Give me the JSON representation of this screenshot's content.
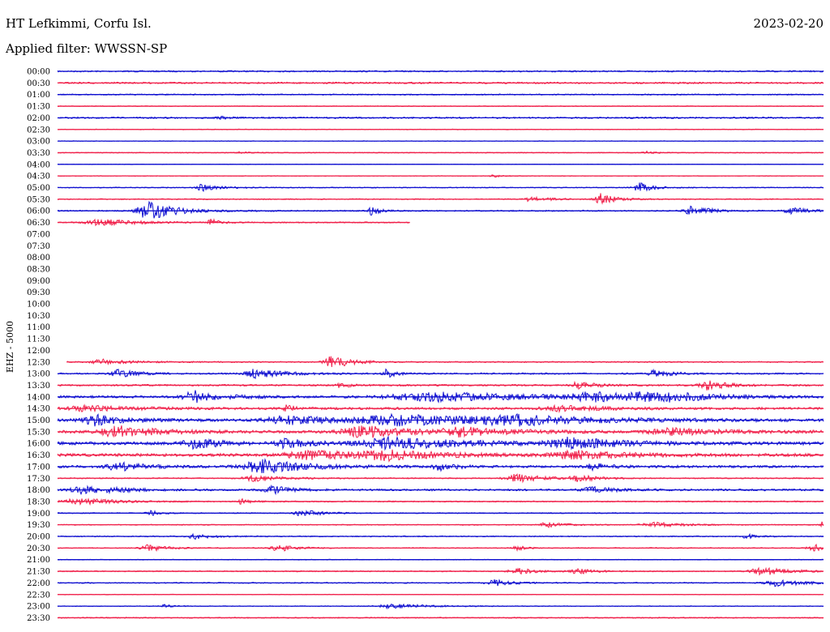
{
  "header": {
    "station": "HT Lefkimmi, Corfu Isl.",
    "date": "2023-02-20",
    "filter": "Applied filter: WWSSN-SP"
  },
  "channel_label": "EHZ - 5000",
  "colors": {
    "even": "#1010d0",
    "odd": "#f0204a"
  },
  "chart_data": {
    "type": "line",
    "title": "",
    "xlabel": "",
    "ylabel": "EHZ - 5000",
    "row_unit_minutes": 30,
    "rows": [
      {
        "time": "00:00",
        "start": 0.0,
        "end": 1.0,
        "noise": 1.2,
        "events": []
      },
      {
        "time": "00:30",
        "start": 0.0,
        "end": 1.0,
        "noise": 1.4,
        "events": []
      },
      {
        "time": "01:00",
        "start": 0.0,
        "end": 1.0,
        "noise": 1.0,
        "events": []
      },
      {
        "time": "01:30",
        "start": 0.0,
        "end": 1.0,
        "noise": 0.6,
        "events": []
      },
      {
        "time": "02:00",
        "start": 0.0,
        "end": 1.0,
        "noise": 1.3,
        "events": [
          {
            "at": 0.21,
            "amp": 2.0,
            "width": 0.01
          }
        ]
      },
      {
        "time": "02:30",
        "start": 0.0,
        "end": 1.0,
        "noise": 0.6,
        "events": []
      },
      {
        "time": "03:00",
        "start": 0.0,
        "end": 1.0,
        "noise": 0.5,
        "events": []
      },
      {
        "time": "03:30",
        "start": 0.0,
        "end": 1.0,
        "noise": 0.7,
        "events": [
          {
            "at": 0.24,
            "amp": 1.5,
            "width": 0.01
          },
          {
            "at": 0.77,
            "amp": 1.5,
            "width": 0.01
          }
        ]
      },
      {
        "time": "04:00",
        "start": 0.0,
        "end": 1.0,
        "noise": 0.5,
        "events": []
      },
      {
        "time": "04:30",
        "start": 0.0,
        "end": 1.0,
        "noise": 0.5,
        "events": [
          {
            "at": 0.57,
            "amp": 1.5,
            "width": 0.01
          }
        ]
      },
      {
        "time": "05:00",
        "start": 0.0,
        "end": 1.0,
        "noise": 0.8,
        "events": [
          {
            "at": 0.19,
            "amp": 4.0,
            "width": 0.02
          },
          {
            "at": 0.76,
            "amp": 6.0,
            "width": 0.015
          }
        ]
      },
      {
        "time": "05:30",
        "start": 0.0,
        "end": 1.0,
        "noise": 0.9,
        "events": [
          {
            "at": 0.62,
            "amp": 3.0,
            "width": 0.02
          },
          {
            "at": 0.71,
            "amp": 7.0,
            "width": 0.015
          }
        ]
      },
      {
        "time": "06:00",
        "start": 0.0,
        "end": 1.0,
        "noise": 1.1,
        "events": [
          {
            "at": 0.12,
            "amp": 11.0,
            "width": 0.03
          },
          {
            "at": 0.41,
            "amp": 5.0,
            "width": 0.01
          },
          {
            "at": 0.83,
            "amp": 6.0,
            "width": 0.02
          },
          {
            "at": 0.96,
            "amp": 4.0,
            "width": 0.02
          }
        ]
      },
      {
        "time": "06:30",
        "start": 0.0,
        "end": 0.46,
        "noise": 1.0,
        "events": [
          {
            "at": 0.06,
            "amp": 4.0,
            "width": 0.04
          },
          {
            "at": 0.2,
            "amp": 4.0,
            "width": 0.01
          }
        ]
      },
      {
        "time": "07:00",
        "start": 0,
        "end": 0,
        "noise": 0,
        "events": []
      },
      {
        "time": "07:30",
        "start": 0,
        "end": 0,
        "noise": 0,
        "events": []
      },
      {
        "time": "08:00",
        "start": 0,
        "end": 0,
        "noise": 0,
        "events": []
      },
      {
        "time": "08:30",
        "start": 0,
        "end": 0,
        "noise": 0,
        "events": []
      },
      {
        "time": "09:00",
        "start": 0,
        "end": 0,
        "noise": 0,
        "events": []
      },
      {
        "time": "09:30",
        "start": 0,
        "end": 0,
        "noise": 0,
        "events": []
      },
      {
        "time": "10:00",
        "start": 0,
        "end": 0,
        "noise": 0,
        "events": []
      },
      {
        "time": "10:30",
        "start": 0,
        "end": 0,
        "noise": 0,
        "events": []
      },
      {
        "time": "11:00",
        "start": 0,
        "end": 0,
        "noise": 0,
        "events": []
      },
      {
        "time": "11:30",
        "start": 0,
        "end": 0,
        "noise": 0,
        "events": []
      },
      {
        "time": "12:00",
        "start": 0,
        "end": 0,
        "noise": 0,
        "events": []
      },
      {
        "time": "12:30",
        "start": 0.012,
        "end": 1.0,
        "noise": 1.0,
        "events": [
          {
            "at": 0.06,
            "amp": 3.0,
            "width": 0.03
          },
          {
            "at": 0.36,
            "amp": 8.0,
            "width": 0.02
          }
        ]
      },
      {
        "time": "13:00",
        "start": 0.0,
        "end": 1.0,
        "noise": 1.3,
        "events": [
          {
            "at": 0.08,
            "amp": 5.0,
            "width": 0.02
          },
          {
            "at": 0.26,
            "amp": 6.0,
            "width": 0.03
          },
          {
            "at": 0.43,
            "amp": 5.0,
            "width": 0.01
          },
          {
            "at": 0.78,
            "amp": 4.0,
            "width": 0.02
          }
        ]
      },
      {
        "time": "13:30",
        "start": 0.0,
        "end": 1.0,
        "noise": 1.4,
        "events": [
          {
            "at": 0.37,
            "amp": 4.0,
            "width": 0.01
          },
          {
            "at": 0.68,
            "amp": 4.0,
            "width": 0.02
          },
          {
            "at": 0.85,
            "amp": 6.0,
            "width": 0.02
          }
        ]
      },
      {
        "time": "14:00",
        "start": 0.0,
        "end": 1.0,
        "noise": 2.0,
        "events": [
          {
            "at": 0.18,
            "amp": 7.0,
            "width": 0.03
          },
          {
            "at": 0.5,
            "amp": 5.0,
            "width": 0.12
          },
          {
            "at": 0.7,
            "amp": 5.0,
            "width": 0.05
          },
          {
            "at": 0.78,
            "amp": 6.0,
            "width": 0.05
          }
        ]
      },
      {
        "time": "14:30",
        "start": 0.0,
        "end": 1.0,
        "noise": 2.0,
        "events": [
          {
            "at": 0.04,
            "amp": 3.0,
            "width": 0.05
          },
          {
            "at": 0.3,
            "amp": 5.0,
            "width": 0.01
          },
          {
            "at": 0.66,
            "amp": 3.0,
            "width": 0.05
          }
        ]
      },
      {
        "time": "15:00",
        "start": 0.0,
        "end": 1.0,
        "noise": 2.5,
        "events": [
          {
            "at": 0.05,
            "amp": 6.0,
            "width": 0.03
          },
          {
            "at": 0.3,
            "amp": 5.0,
            "width": 0.05
          },
          {
            "at": 0.45,
            "amp": 6.0,
            "width": 0.1
          },
          {
            "at": 0.6,
            "amp": 5.0,
            "width": 0.08
          }
        ]
      },
      {
        "time": "15:30",
        "start": 0.0,
        "end": 1.0,
        "noise": 2.5,
        "events": [
          {
            "at": 0.08,
            "amp": 7.0,
            "width": 0.04
          },
          {
            "at": 0.4,
            "amp": 7.0,
            "width": 0.05
          },
          {
            "at": 0.53,
            "amp": 5.0,
            "width": 0.05
          },
          {
            "at": 0.8,
            "amp": 4.0,
            "width": 0.05
          }
        ]
      },
      {
        "time": "16:00",
        "start": 0.0,
        "end": 1.0,
        "noise": 2.5,
        "events": [
          {
            "at": 0.18,
            "amp": 6.0,
            "width": 0.03
          },
          {
            "at": 0.3,
            "amp": 5.0,
            "width": 0.03
          },
          {
            "at": 0.44,
            "amp": 7.0,
            "width": 0.08
          },
          {
            "at": 0.67,
            "amp": 6.0,
            "width": 0.06
          }
        ]
      },
      {
        "time": "16:30",
        "start": 0.0,
        "end": 1.0,
        "noise": 2.5,
        "events": [
          {
            "at": 0.33,
            "amp": 5.0,
            "width": 0.06
          },
          {
            "at": 0.43,
            "amp": 5.0,
            "width": 0.06
          },
          {
            "at": 0.68,
            "amp": 5.0,
            "width": 0.06
          }
        ]
      },
      {
        "time": "17:00",
        "start": 0.0,
        "end": 1.0,
        "noise": 2.0,
        "events": [
          {
            "at": 0.08,
            "amp": 5.0,
            "width": 0.03
          },
          {
            "at": 0.27,
            "amp": 8.0,
            "width": 0.05
          },
          {
            "at": 0.5,
            "amp": 4.0,
            "width": 0.02
          },
          {
            "at": 0.7,
            "amp": 4.0,
            "width": 0.02
          }
        ]
      },
      {
        "time": "17:30",
        "start": 0.0,
        "end": 1.0,
        "noise": 1.0,
        "events": [
          {
            "at": 0.26,
            "amp": 4.0,
            "width": 0.03
          },
          {
            "at": 0.6,
            "amp": 5.0,
            "width": 0.03
          },
          {
            "at": 0.68,
            "amp": 4.0,
            "width": 0.02
          }
        ]
      },
      {
        "time": "18:00",
        "start": 0.0,
        "end": 1.0,
        "noise": 1.6,
        "events": [
          {
            "at": 0.04,
            "amp": 5.0,
            "width": 0.04
          },
          {
            "at": 0.28,
            "amp": 5.0,
            "width": 0.02
          },
          {
            "at": 0.7,
            "amp": 3.0,
            "width": 0.03
          }
        ]
      },
      {
        "time": "18:30",
        "start": 0.0,
        "end": 1.0,
        "noise": 1.0,
        "events": [
          {
            "at": 0.03,
            "amp": 4.0,
            "width": 0.04
          },
          {
            "at": 0.24,
            "amp": 3.0,
            "width": 0.01
          }
        ]
      },
      {
        "time": "19:00",
        "start": 0.0,
        "end": 1.0,
        "noise": 0.9,
        "events": [
          {
            "at": 0.12,
            "amp": 4.0,
            "width": 0.01
          },
          {
            "at": 0.32,
            "amp": 4.0,
            "width": 0.02
          }
        ]
      },
      {
        "time": "19:30",
        "start": 0.0,
        "end": 1.0,
        "noise": 0.8,
        "events": [
          {
            "at": 0.64,
            "amp": 3.0,
            "width": 0.02
          },
          {
            "at": 0.78,
            "amp": 3.0,
            "width": 0.03
          },
          {
            "at": 0.998,
            "amp": 5.0,
            "width": 0.005
          }
        ]
      },
      {
        "time": "20:00",
        "start": 0.0,
        "end": 1.0,
        "noise": 0.9,
        "events": [
          {
            "at": 0.18,
            "amp": 3.0,
            "width": 0.02
          },
          {
            "at": 0.9,
            "amp": 3.0,
            "width": 0.01
          }
        ]
      },
      {
        "time": "20:30",
        "start": 0.0,
        "end": 1.0,
        "noise": 0.8,
        "events": [
          {
            "at": 0.12,
            "amp": 4.0,
            "width": 0.02
          },
          {
            "at": 0.29,
            "amp": 4.0,
            "width": 0.02
          },
          {
            "at": 0.6,
            "amp": 3.0,
            "width": 0.01
          },
          {
            "at": 0.99,
            "amp": 4.0,
            "width": 0.02
          }
        ]
      },
      {
        "time": "21:00",
        "start": 0.0,
        "end": 1.0,
        "noise": 0.6,
        "events": []
      },
      {
        "time": "21:30",
        "start": 0.0,
        "end": 1.0,
        "noise": 0.9,
        "events": [
          {
            "at": 0.6,
            "amp": 4.0,
            "width": 0.02
          },
          {
            "at": 0.68,
            "amp": 3.0,
            "width": 0.02
          },
          {
            "at": 0.92,
            "amp": 5.0,
            "width": 0.03
          }
        ]
      },
      {
        "time": "22:00",
        "start": 0.0,
        "end": 1.0,
        "noise": 0.9,
        "events": [
          {
            "at": 0.57,
            "amp": 4.0,
            "width": 0.02
          },
          {
            "at": 0.94,
            "amp": 4.0,
            "width": 0.03
          }
        ]
      },
      {
        "time": "22:30",
        "start": 0.0,
        "end": 1.0,
        "noise": 0.5,
        "events": []
      },
      {
        "time": "23:00",
        "start": 0.0,
        "end": 1.0,
        "noise": 0.6,
        "events": [
          {
            "at": 0.14,
            "amp": 2.0,
            "width": 0.01
          },
          {
            "at": 0.44,
            "amp": 3.0,
            "width": 0.04
          }
        ]
      },
      {
        "time": "23:30",
        "start": 0.0,
        "end": 1.0,
        "noise": 0.9,
        "events": []
      }
    ]
  }
}
